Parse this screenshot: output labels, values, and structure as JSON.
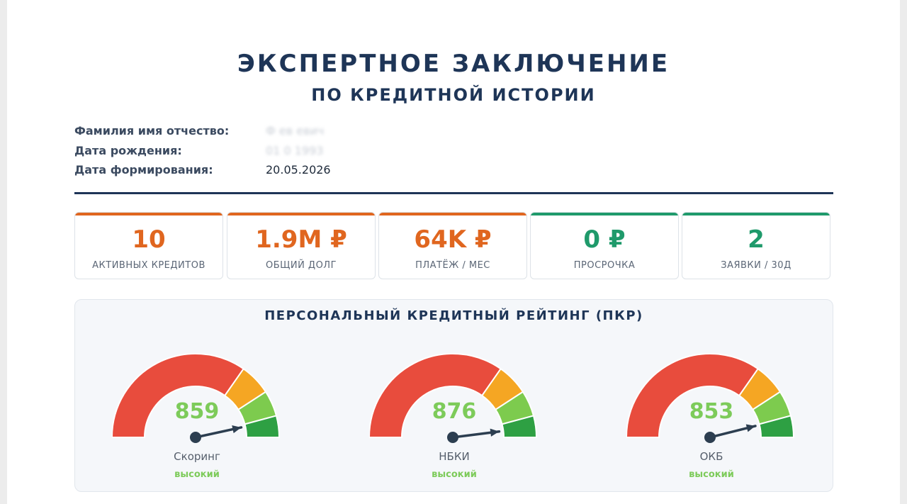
{
  "header": {
    "title": "ЭКСПЕРТНОЕ ЗАКЛЮЧЕНИЕ",
    "subtitle": "ПО КРЕДИТНОЙ ИСТОРИИ"
  },
  "person": {
    "fio_label": "Фамилия имя отчество:",
    "fio_value": "Ф      ев      евич",
    "birth_label": "Дата рождения:",
    "birth_value": "01  0   1993",
    "formed_label": "Дата формирования:",
    "formed_value": "20.05.2026"
  },
  "stats": [
    {
      "value": "10",
      "label": "АКТИВНЫХ КРЕДИТОВ",
      "color": "#e0661f"
    },
    {
      "value": "1.9M ₽",
      "label": "ОБЩИЙ ДОЛГ",
      "color": "#e0661f"
    },
    {
      "value": "64K ₽",
      "label": "ПЛАТЁЖ / МЕС",
      "color": "#e0661f"
    },
    {
      "value": "0 ₽",
      "label": "ПРОСРОЧКА",
      "color": "#1f9a6b"
    },
    {
      "value": "2",
      "label": "ЗАЯВКИ / 30Д",
      "color": "#1f9a6b"
    }
  ],
  "rating": {
    "title": "ПЕРСОНАЛЬНЫЙ КРЕДИТНЫЙ РЕЙТИНГ (ПКР)",
    "gauges": [
      {
        "name": "Скоринг",
        "score": "859",
        "level": "высокий"
      },
      {
        "name": "НБКИ",
        "score": "876",
        "level": "высокий"
      },
      {
        "name": "ОКБ",
        "score": "853",
        "level": "высокий"
      }
    ]
  }
}
